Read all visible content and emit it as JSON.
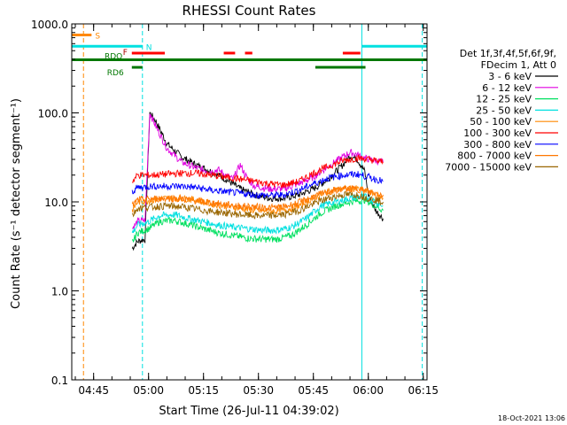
{
  "chart_data": {
    "type": "line",
    "title": "RHESSI Count Rates",
    "xlabel": "Start Time (26-Jul-11 04:39:02)",
    "ylabel": "Count Rate (s⁻¹ detector segment⁻¹)",
    "y_scale": "log",
    "ylim": [
      0.1,
      1000
    ],
    "xlim_minutes": [
      0,
      97
    ],
    "x_tick_labels": [
      "04:45",
      "05:00",
      "05:15",
      "05:30",
      "05:45",
      "06:00",
      "06:15"
    ],
    "x_tick_minutes": [
      5.97,
      20.97,
      35.97,
      50.97,
      65.97,
      80.97,
      95.97
    ],
    "y_tick_labels": [
      "0.1",
      "1.0",
      "10.0",
      "100.0",
      "1000.0"
    ],
    "y_tick_values": [
      0.1,
      1,
      10,
      100,
      1000
    ],
    "legend_header": [
      "Det 1f,3f,4f,5f,6f,9f,",
      "FDecim 1, Att 0"
    ],
    "legend_position": "right",
    "footer_date": "18-Oct-2021 13:06",
    "series": [
      {
        "name": "3 - 6 keV",
        "color": "#000000",
        "points": [
          [
            16.5,
            3
          ],
          [
            18,
            3.6
          ],
          [
            20,
            3.8
          ],
          [
            21.3,
            100
          ],
          [
            23,
            80
          ],
          [
            26,
            45
          ],
          [
            30,
            32
          ],
          [
            34,
            26
          ],
          [
            38,
            22
          ],
          [
            42,
            18
          ],
          [
            46,
            14
          ],
          [
            50,
            12
          ],
          [
            54,
            11
          ],
          [
            58,
            11
          ],
          [
            62,
            12
          ],
          [
            66,
            14
          ],
          [
            70,
            18
          ],
          [
            74,
            26
          ],
          [
            76,
            33
          ],
          [
            78,
            30
          ],
          [
            80,
            22
          ],
          [
            81,
            12
          ],
          [
            83,
            8
          ],
          [
            85,
            6.5
          ]
        ]
      },
      {
        "name": "6 - 12 keV",
        "color": "#e000e0",
        "points": [
          [
            16.5,
            5
          ],
          [
            18,
            6
          ],
          [
            20,
            6.2
          ],
          [
            21.3,
            100
          ],
          [
            23,
            70
          ],
          [
            26,
            40
          ],
          [
            30,
            28
          ],
          [
            34,
            24
          ],
          [
            38,
            22
          ],
          [
            40,
            23
          ],
          [
            42,
            20
          ],
          [
            44,
            18
          ],
          [
            46,
            26
          ],
          [
            48,
            18
          ],
          [
            50,
            15
          ],
          [
            54,
            14
          ],
          [
            58,
            14
          ],
          [
            62,
            16
          ],
          [
            66,
            19
          ],
          [
            70,
            25
          ],
          [
            74,
            32
          ],
          [
            76,
            36
          ],
          [
            78,
            34
          ],
          [
            80,
            31
          ],
          [
            83,
            29
          ],
          [
            85,
            28
          ]
        ]
      },
      {
        "name": "12 - 25 keV",
        "color": "#00e060",
        "points": [
          [
            16.5,
            3.5
          ],
          [
            18,
            4.5
          ],
          [
            21,
            5
          ],
          [
            24,
            6
          ],
          [
            28,
            6.2
          ],
          [
            32,
            5.6
          ],
          [
            36,
            5
          ],
          [
            40,
            4.5
          ],
          [
            44,
            4.2
          ],
          [
            48,
            3.9
          ],
          [
            52,
            3.8
          ],
          [
            56,
            3.8
          ],
          [
            60,
            4.2
          ],
          [
            64,
            5.5
          ],
          [
            68,
            7.5
          ],
          [
            72,
            9
          ],
          [
            76,
            10
          ],
          [
            80,
            10.5
          ],
          [
            83,
            9
          ],
          [
            85,
            8
          ]
        ]
      },
      {
        "name": "25 - 50 keV",
        "color": "#00e0e0",
        "points": [
          [
            16.5,
            4.5
          ],
          [
            18,
            5.5
          ],
          [
            21,
            6
          ],
          [
            24,
            7
          ],
          [
            28,
            7.2
          ],
          [
            32,
            6.5
          ],
          [
            36,
            6
          ],
          [
            40,
            5.5
          ],
          [
            44,
            5.2
          ],
          [
            48,
            5
          ],
          [
            52,
            4.8
          ],
          [
            56,
            4.8
          ],
          [
            60,
            5.2
          ],
          [
            64,
            6.5
          ],
          [
            68,
            9
          ],
          [
            72,
            10
          ],
          [
            76,
            11
          ],
          [
            80,
            11.5
          ],
          [
            83,
            10
          ],
          [
            85,
            9
          ]
        ]
      },
      {
        "name": "50 - 100 keV",
        "color": "#ff8800",
        "points": [
          [
            16.5,
            8
          ],
          [
            18,
            10
          ],
          [
            22,
            10.5
          ],
          [
            26,
            11
          ],
          [
            30,
            11
          ],
          [
            34,
            10.5
          ],
          [
            38,
            9.5
          ],
          [
            42,
            9
          ],
          [
            46,
            8.5
          ],
          [
            50,
            8
          ],
          [
            54,
            7.8
          ],
          [
            58,
            8
          ],
          [
            62,
            9
          ],
          [
            66,
            11
          ],
          [
            70,
            13
          ],
          [
            74,
            14
          ],
          [
            78,
            14
          ],
          [
            81,
            13
          ],
          [
            83,
            12
          ],
          [
            85,
            11
          ]
        ]
      },
      {
        "name": "100 - 300 keV",
        "color": "#ff0000",
        "points": [
          [
            16.5,
            17
          ],
          [
            18,
            20
          ],
          [
            22,
            20
          ],
          [
            26,
            20.5
          ],
          [
            30,
            21
          ],
          [
            34,
            21
          ],
          [
            38,
            20
          ],
          [
            42,
            19
          ],
          [
            46,
            18
          ],
          [
            50,
            17
          ],
          [
            54,
            16
          ],
          [
            58,
            15.5
          ],
          [
            62,
            17
          ],
          [
            66,
            21
          ],
          [
            70,
            25
          ],
          [
            74,
            29
          ],
          [
            78,
            31
          ],
          [
            81,
            30
          ],
          [
            83,
            29
          ],
          [
            85,
            28
          ]
        ]
      },
      {
        "name": "300 - 800 keV",
        "color": "#0000ff",
        "points": [
          [
            16.5,
            13
          ],
          [
            18,
            14.5
          ],
          [
            22,
            15
          ],
          [
            26,
            15
          ],
          [
            30,
            15
          ],
          [
            34,
            14.5
          ],
          [
            38,
            13.5
          ],
          [
            42,
            13
          ],
          [
            46,
            12.5
          ],
          [
            50,
            12
          ],
          [
            54,
            11.8
          ],
          [
            58,
            12
          ],
          [
            62,
            13.5
          ],
          [
            66,
            16
          ],
          [
            70,
            18.5
          ],
          [
            74,
            20
          ],
          [
            78,
            20.5
          ],
          [
            81,
            19
          ],
          [
            83,
            18
          ],
          [
            85,
            17
          ]
        ]
      },
      {
        "name": "800 - 7000 keV",
        "color": "#ff7700",
        "points": [
          [
            16.5,
            9
          ],
          [
            18,
            10.5
          ],
          [
            22,
            10.8
          ],
          [
            26,
            11
          ],
          [
            30,
            10.8
          ],
          [
            34,
            10.3
          ],
          [
            38,
            9.8
          ],
          [
            42,
            9.3
          ],
          [
            46,
            9
          ],
          [
            50,
            8.8
          ],
          [
            54,
            8.6
          ],
          [
            58,
            8.8
          ],
          [
            62,
            9.8
          ],
          [
            66,
            11.5
          ],
          [
            70,
            13
          ],
          [
            74,
            14
          ],
          [
            78,
            14
          ],
          [
            81,
            13
          ],
          [
            83,
            12.5
          ],
          [
            85,
            12
          ]
        ]
      },
      {
        "name": "7000 - 15000 keV",
        "color": "#996600",
        "points": [
          [
            16.5,
            7
          ],
          [
            18,
            8.5
          ],
          [
            22,
            8.8
          ],
          [
            26,
            9
          ],
          [
            30,
            8.8
          ],
          [
            34,
            8.3
          ],
          [
            38,
            7.8
          ],
          [
            42,
            7.5
          ],
          [
            46,
            7.2
          ],
          [
            50,
            7
          ],
          [
            54,
            7
          ],
          [
            58,
            7.2
          ],
          [
            62,
            8
          ],
          [
            66,
            9.5
          ],
          [
            70,
            11
          ],
          [
            74,
            12
          ],
          [
            78,
            12
          ],
          [
            81,
            11
          ],
          [
            83,
            10.5
          ],
          [
            85,
            10
          ]
        ]
      }
    ],
    "vertical_lines": [
      {
        "minute": 0,
        "color": "#00e0e0",
        "style": "solid"
      },
      {
        "minute": 3.2,
        "color": "#ff8800",
        "style": "dashed"
      },
      {
        "minute": 19.3,
        "color": "#00e0e0",
        "style": "dashed"
      },
      {
        "minute": 79.2,
        "color": "#00e0e0",
        "style": "solid"
      },
      {
        "minute": 95.7,
        "color": "#00e0e0",
        "style": "dashed"
      }
    ],
    "flag_bars": [
      {
        "label": "S",
        "color": "#ff8800",
        "level": 750,
        "segments": [
          [
            0,
            5.4
          ]
        ]
      },
      {
        "label": "N",
        "color": "#00e0e0",
        "level": 560,
        "segments": [
          [
            0,
            19.3
          ],
          [
            79.2,
            97
          ]
        ]
      },
      {
        "label": "F",
        "color": "#ff0000",
        "level": 470,
        "segments": [
          [
            16.4,
            25.4
          ],
          [
            41.5,
            44.6
          ],
          [
            47.3,
            49.3
          ],
          [
            74,
            78.8
          ]
        ]
      },
      {
        "label": "RDO",
        "color": "#007700",
        "level": 395,
        "segments": [
          [
            0,
            97
          ]
        ]
      },
      {
        "label": "RD6",
        "color": "#007700",
        "level": 325,
        "segments": [
          [
            16.4,
            19.3
          ],
          [
            66.5,
            80.2
          ]
        ]
      }
    ]
  }
}
